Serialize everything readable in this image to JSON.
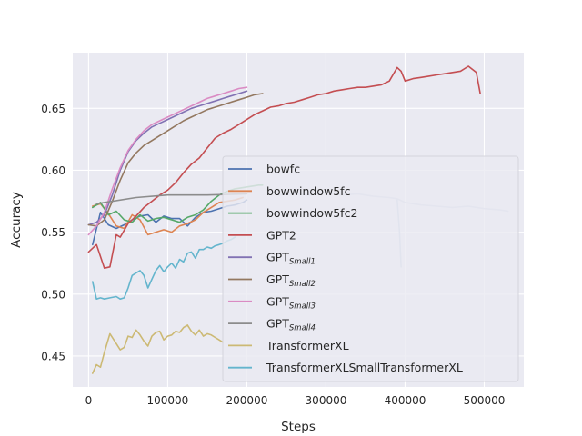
{
  "chart_data": {
    "type": "line",
    "title": "",
    "xlabel": "Steps",
    "ylabel": "Accuracy",
    "xlim": [
      -20000,
      550000
    ],
    "ylim": [
      0.425,
      0.695
    ],
    "xticks": [
      0,
      100000,
      200000,
      300000,
      400000,
      500000
    ],
    "yticks": [
      0.45,
      0.5,
      0.55,
      0.6,
      0.65
    ],
    "ytick_labels": [
      "0.45",
      "0.50",
      "0.55",
      "0.60",
      "0.65"
    ],
    "grid": true,
    "legend_position": "lower-right",
    "series": [
      {
        "name": "bowfc",
        "color": "#4c72b0",
        "legend_main": "bowfc",
        "legend_sub": "",
        "x": [
          5000,
          15000,
          25000,
          35000,
          45000,
          55000,
          65000,
          75000,
          85000,
          95000,
          105000,
          115000,
          125000,
          135000,
          145000,
          155000,
          165000,
          175000,
          185000,
          195000,
          200000
        ],
        "y": [
          0.54,
          0.566,
          0.556,
          0.553,
          0.556,
          0.56,
          0.563,
          0.564,
          0.558,
          0.563,
          0.561,
          0.561,
          0.555,
          0.562,
          0.566,
          0.567,
          0.569,
          0.571,
          0.572,
          0.574,
          0.576
        ]
      },
      {
        "name": "bowwindow5fc",
        "color": "#dd8452",
        "legend_main": "bowwindow5fc",
        "legend_sub": "",
        "x": [
          5000,
          15000,
          25000,
          35000,
          45000,
          55000,
          65000,
          75000,
          85000,
          95000,
          105000,
          115000,
          125000,
          135000,
          145000,
          155000,
          165000,
          175000,
          185000,
          195000
        ],
        "y": [
          0.571,
          0.573,
          0.565,
          0.555,
          0.553,
          0.564,
          0.56,
          0.548,
          0.55,
          0.552,
          0.55,
          0.555,
          0.557,
          0.56,
          0.566,
          0.57,
          0.574,
          0.575,
          0.576,
          0.578
        ]
      },
      {
        "name": "bowwindow5fc2",
        "color": "#55a868",
        "legend_main": "bowwindow5fc2",
        "legend_sub": "",
        "x": [
          5000,
          15000,
          25000,
          35000,
          45000,
          55000,
          65000,
          75000,
          85000,
          95000,
          105000,
          115000,
          125000,
          135000,
          145000,
          155000,
          165000,
          175000,
          185000,
          195000,
          205000,
          215000,
          220000
        ],
        "y": [
          0.57,
          0.574,
          0.564,
          0.567,
          0.56,
          0.558,
          0.564,
          0.559,
          0.561,
          0.562,
          0.56,
          0.558,
          0.562,
          0.564,
          0.568,
          0.575,
          0.58,
          0.583,
          0.585,
          0.586,
          0.587,
          0.588,
          0.588
        ]
      },
      {
        "name": "GPT2",
        "color": "#c44e52",
        "legend_main": "GPT2",
        "legend_sub": "",
        "x": [
          0,
          10000,
          20000,
          27000,
          35000,
          40000,
          50000,
          60000,
          70000,
          80000,
          90000,
          100000,
          110000,
          120000,
          130000,
          140000,
          150000,
          160000,
          170000,
          180000,
          190000,
          200000,
          210000,
          220000,
          230000,
          240000,
          250000,
          260000,
          270000,
          280000,
          290000,
          300000,
          310000,
          320000,
          330000,
          340000,
          350000,
          360000,
          370000,
          380000,
          390000,
          395000,
          400000,
          410000,
          420000,
          430000,
          440000,
          450000,
          460000,
          470000,
          480000,
          490000,
          495000
        ],
        "y": [
          0.534,
          0.54,
          0.521,
          0.522,
          0.548,
          0.546,
          0.557,
          0.563,
          0.57,
          0.575,
          0.58,
          0.584,
          0.59,
          0.598,
          0.605,
          0.61,
          0.618,
          0.626,
          0.63,
          0.633,
          0.637,
          0.641,
          0.645,
          0.648,
          0.651,
          0.652,
          0.654,
          0.655,
          0.657,
          0.659,
          0.661,
          0.662,
          0.664,
          0.665,
          0.666,
          0.667,
          0.667,
          0.668,
          0.669,
          0.672,
          0.683,
          0.68,
          0.672,
          0.674,
          0.675,
          0.676,
          0.677,
          0.678,
          0.679,
          0.68,
          0.684,
          0.679,
          0.662
        ]
      },
      {
        "name": "GPT_Small1",
        "color": "#8172b3",
        "legend_main": "GPT",
        "legend_sub": "Small1",
        "x": [
          0,
          10000,
          20000,
          30000,
          40000,
          50000,
          60000,
          70000,
          80000,
          90000,
          100000,
          110000,
          120000,
          130000,
          140000,
          150000,
          160000,
          170000,
          180000,
          190000,
          200000
        ],
        "y": [
          0.556,
          0.558,
          0.564,
          0.58,
          0.6,
          0.615,
          0.624,
          0.63,
          0.635,
          0.638,
          0.641,
          0.644,
          0.647,
          0.65,
          0.652,
          0.654,
          0.656,
          0.658,
          0.66,
          0.662,
          0.664
        ]
      },
      {
        "name": "GPT_Small2",
        "color": "#937860",
        "legend_main": "GPT",
        "legend_sub": "Small2",
        "x": [
          0,
          10000,
          20000,
          30000,
          40000,
          50000,
          60000,
          70000,
          80000,
          90000,
          100000,
          110000,
          120000,
          130000,
          140000,
          150000,
          160000,
          170000,
          180000,
          190000,
          200000,
          210000,
          220000
        ],
        "y": [
          0.556,
          0.555,
          0.56,
          0.575,
          0.592,
          0.606,
          0.614,
          0.62,
          0.624,
          0.628,
          0.632,
          0.636,
          0.64,
          0.643,
          0.646,
          0.649,
          0.651,
          0.653,
          0.655,
          0.657,
          0.659,
          0.661,
          0.662
        ]
      },
      {
        "name": "GPT_Small3",
        "color": "#da8bc3",
        "legend_main": "GPT",
        "legend_sub": "Small3",
        "x": [
          0,
          10000,
          20000,
          30000,
          40000,
          50000,
          60000,
          70000,
          80000,
          90000,
          100000,
          110000,
          120000,
          130000,
          140000,
          150000,
          160000,
          170000,
          180000,
          190000,
          200000
        ],
        "y": [
          0.548,
          0.555,
          0.566,
          0.585,
          0.602,
          0.616,
          0.625,
          0.632,
          0.637,
          0.64,
          0.643,
          0.646,
          0.649,
          0.652,
          0.655,
          0.658,
          0.66,
          0.662,
          0.664,
          0.666,
          0.667
        ]
      },
      {
        "name": "GPT_Small4",
        "color": "#8c8c8c",
        "legend_main": "GPT",
        "legend_sub": "Small4",
        "x": [
          10000,
          30000,
          60000,
          100000,
          150000,
          200000
        ],
        "y": [
          0.573,
          0.575,
          0.578,
          0.58,
          0.58,
          0.581
        ]
      },
      {
        "name": "TransformerXL",
        "color": "#ccb974",
        "legend_main": "TransformerXL",
        "legend_sub": "",
        "x": [
          5000,
          10000,
          15000,
          20000,
          27000,
          35000,
          40000,
          45000,
          50000,
          55000,
          60000,
          65000,
          70000,
          75000,
          80000,
          85000,
          90000,
          95000,
          100000,
          105000,
          110000,
          115000,
          120000,
          125000,
          130000,
          135000,
          140000,
          145000,
          150000,
          155000,
          160000,
          165000,
          170000
        ],
        "y": [
          0.436,
          0.443,
          0.441,
          0.453,
          0.468,
          0.46,
          0.455,
          0.457,
          0.466,
          0.465,
          0.471,
          0.467,
          0.462,
          0.458,
          0.466,
          0.469,
          0.47,
          0.463,
          0.466,
          0.467,
          0.47,
          0.469,
          0.473,
          0.475,
          0.47,
          0.467,
          0.471,
          0.466,
          0.468,
          0.467,
          0.465,
          0.463,
          0.461
        ]
      },
      {
        "name": "TransformerXLSmallTransformerXL",
        "color": "#64b5cd",
        "legend_main": "TransformerXLSmallTransformerXL",
        "legend_sub": "",
        "x": [
          5000,
          10000,
          15000,
          20000,
          27000,
          35000,
          40000,
          45000,
          50000,
          55000,
          60000,
          65000,
          70000,
          75000,
          80000,
          85000,
          90000,
          95000,
          100000,
          105000,
          110000,
          115000,
          120000,
          125000,
          130000,
          135000,
          140000,
          145000,
          150000,
          155000,
          160000,
          165000,
          170000,
          175000,
          180000,
          185000
        ],
        "y": [
          0.51,
          0.496,
          0.497,
          0.496,
          0.497,
          0.498,
          0.496,
          0.497,
          0.505,
          0.515,
          0.517,
          0.519,
          0.515,
          0.505,
          0.512,
          0.519,
          0.523,
          0.518,
          0.522,
          0.525,
          0.521,
          0.528,
          0.526,
          0.533,
          0.534,
          0.529,
          0.536,
          0.536,
          0.538,
          0.537,
          0.539,
          0.54,
          0.541,
          0.543,
          0.544,
          0.546
        ]
      },
      {
        "name": "faded-trace",
        "color": "#c5cde0",
        "legend_main": "",
        "legend_sub": "",
        "x": [
          240000,
          260000,
          280000,
          300000,
          320000,
          340000,
          360000,
          380000,
          390000,
          400000,
          420000,
          440000,
          460000,
          480000,
          500000,
          520000,
          530000
        ],
        "y": [
          0.58,
          0.581,
          0.58,
          0.582,
          0.58,
          0.581,
          0.579,
          0.578,
          0.577,
          0.574,
          0.572,
          0.571,
          0.57,
          0.571,
          0.569,
          0.568,
          0.567
        ]
      },
      {
        "name": "faded-drop",
        "color": "#b8c6df",
        "legend_main": "",
        "legend_sub": "",
        "x": [
          390000,
          393000,
          395000
        ],
        "y": [
          0.576,
          0.55,
          0.522
        ]
      }
    ]
  }
}
